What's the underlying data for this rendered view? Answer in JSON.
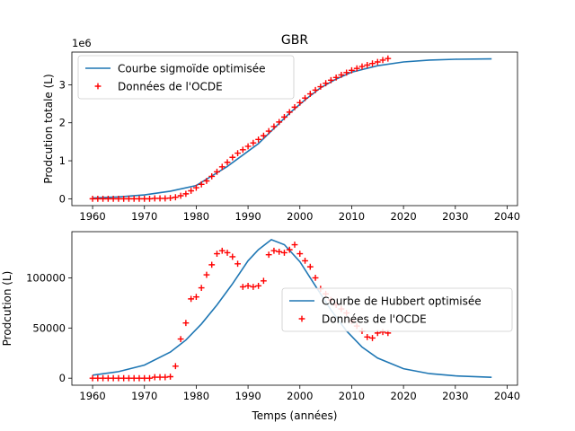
{
  "figure": {
    "title": "GBR"
  },
  "chart_data": [
    {
      "type": "line",
      "title": "GBR",
      "ylabel": "Prodcution totale (L)",
      "xlabel": "",
      "y_scale_label": "1e6",
      "xlim": [
        1956,
        2042
      ],
      "ylim": [
        -0.18,
        3.86
      ],
      "xticks": [
        1960,
        1970,
        1980,
        1990,
        2000,
        2010,
        2020,
        2030,
        2040
      ],
      "xtick_labels": [
        "1960",
        "1970",
        "1980",
        "1990",
        "2000",
        "2010",
        "2020",
        "2030",
        "2040"
      ],
      "yticks": [
        0,
        1,
        2,
        3
      ],
      "ytick_labels": [
        "0",
        "1",
        "2",
        "3"
      ],
      "legend_position": "upper-left",
      "curve": {
        "name": "Courbe sigmoïde optimisée",
        "color": "#1f77b4",
        "x": [
          1960,
          1965,
          1970,
          1975,
          1980,
          1983,
          1986,
          1989,
          1992,
          1995,
          1998,
          2001,
          2004,
          2007,
          2010,
          2015,
          2020,
          2025,
          2030,
          2037
        ],
        "y": [
          0.02,
          0.05,
          0.1,
          0.2,
          0.35,
          0.6,
          0.85,
          1.15,
          1.45,
          1.85,
          2.25,
          2.6,
          2.92,
          3.15,
          3.33,
          3.5,
          3.6,
          3.65,
          3.67,
          3.68
        ]
      },
      "points": {
        "name": "Données de l'OCDE",
        "color": "#ff0000",
        "marker": "+",
        "x": [
          1960,
          1961,
          1962,
          1963,
          1964,
          1965,
          1966,
          1967,
          1968,
          1969,
          1970,
          1971,
          1972,
          1973,
          1974,
          1975,
          1976,
          1977,
          1978,
          1979,
          1980,
          1981,
          1982,
          1983,
          1984,
          1985,
          1986,
          1987,
          1988,
          1989,
          1990,
          1991,
          1992,
          1993,
          1994,
          1995,
          1996,
          1997,
          1998,
          1999,
          2000,
          2001,
          2002,
          2003,
          2004,
          2005,
          2006,
          2007,
          2008,
          2009,
          2010,
          2011,
          2012,
          2013,
          2014,
          2015,
          2016,
          2017
        ],
        "y": [
          0,
          0,
          0,
          0,
          0,
          0,
          0,
          0,
          0,
          0,
          0,
          0,
          0.01,
          0.01,
          0.01,
          0.02,
          0.04,
          0.08,
          0.13,
          0.21,
          0.29,
          0.38,
          0.47,
          0.59,
          0.71,
          0.84,
          0.96,
          1.09,
          1.2,
          1.29,
          1.38,
          1.47,
          1.56,
          1.66,
          1.78,
          1.9,
          2.02,
          2.15,
          2.28,
          2.41,
          2.53,
          2.65,
          2.76,
          2.86,
          2.95,
          3.04,
          3.12,
          3.19,
          3.26,
          3.32,
          3.38,
          3.43,
          3.48,
          3.52,
          3.56,
          3.6,
          3.65,
          3.69
        ]
      }
    },
    {
      "type": "line",
      "title": "",
      "ylabel": "Prodcution (L)",
      "xlabel": "Temps (années)",
      "xlim": [
        1956,
        2042
      ],
      "ylim": [
        -7000,
        146000
      ],
      "xticks": [
        1960,
        1970,
        1980,
        1990,
        2000,
        2010,
        2020,
        2030,
        2040
      ],
      "xtick_labels": [
        "1960",
        "1970",
        "1980",
        "1990",
        "2000",
        "2010",
        "2020",
        "2030",
        "2040"
      ],
      "yticks": [
        0,
        50000,
        100000
      ],
      "ytick_labels": [
        "0",
        "50000",
        "100000"
      ],
      "legend_position": "center-right",
      "curve": {
        "name": "Courbe de Hubbert optimisée",
        "color": "#1f77b4",
        "x": [
          1960,
          1965,
          1970,
          1975,
          1978,
          1981,
          1984,
          1987,
          1990,
          1992,
          1994.5,
          1997,
          2000,
          2003,
          2006,
          2009,
          2012,
          2015,
          2020,
          2025,
          2030,
          2037
        ],
        "y": [
          3000,
          6500,
          13000,
          26000,
          38000,
          54000,
          73000,
          94000,
          117000,
          128000,
          138000,
          133000,
          116000,
          92000,
          68000,
          47000,
          31000,
          20000,
          9500,
          4500,
          2300,
          900
        ]
      },
      "points": {
        "name": "Données de l'OCDE",
        "color": "#ff0000",
        "marker": "+",
        "x": [
          1960,
          1961,
          1962,
          1963,
          1964,
          1965,
          1966,
          1967,
          1968,
          1969,
          1970,
          1971,
          1972,
          1973,
          1974,
          1975,
          1976,
          1977,
          1978,
          1979,
          1980,
          1981,
          1982,
          1983,
          1984,
          1985,
          1986,
          1987,
          1988,
          1989,
          1990,
          1991,
          1992,
          1993,
          1994,
          1995,
          1996,
          1997,
          1998,
          1999,
          2000,
          2001,
          2002,
          2003,
          2004,
          2005,
          2006,
          2007,
          2008,
          2009,
          2010,
          2011,
          2012,
          2013,
          2014,
          2015,
          2016,
          2017
        ],
        "y": [
          0,
          0,
          0,
          0,
          0,
          0,
          0,
          0,
          0,
          0,
          0,
          0,
          1000,
          1000,
          1000,
          1500,
          12000,
          39000,
          55000,
          79000,
          81000,
          90000,
          103000,
          113000,
          124000,
          127000,
          125000,
          121000,
          114000,
          91000,
          92000,
          91000,
          92000,
          97000,
          123000,
          127000,
          126000,
          125000,
          128000,
          133000,
          124000,
          117000,
          111000,
          100000,
          89000,
          84000,
          78000,
          73000,
          69000,
          65000,
          57000,
          52000,
          47000,
          41000,
          40000,
          45000,
          46000,
          45000
        ]
      }
    }
  ]
}
